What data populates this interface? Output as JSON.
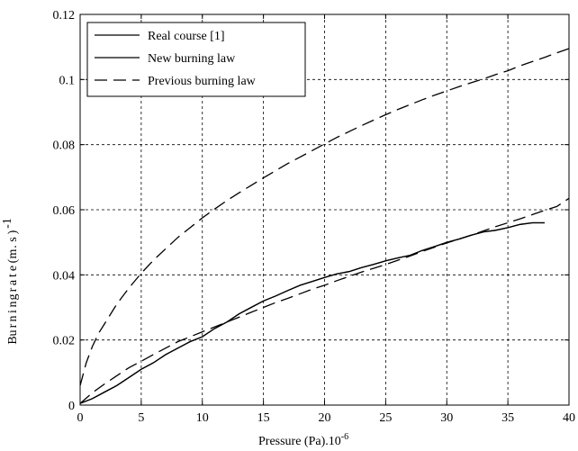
{
  "chart_data": {
    "type": "line",
    "xlabel": "Pressure (Pa).10",
    "xlabel_sup": "-6",
    "ylabel_chars": [
      "B",
      "u",
      "r",
      "n",
      "i",
      "n",
      "g",
      "r",
      "a",
      "t",
      "e",
      "(",
      "m",
      ".",
      "s",
      ")"
    ],
    "ylabel_sup": "-1",
    "xlim": [
      0,
      40
    ],
    "ylim": [
      0,
      0.12
    ],
    "x_ticks": [
      0,
      5,
      10,
      15,
      20,
      25,
      30,
      35,
      40
    ],
    "x_tick_labels": [
      "0",
      "5",
      "10",
      "15",
      "20",
      "25",
      "30",
      "35",
      "40"
    ],
    "y_ticks": [
      0,
      0.02,
      0.04,
      0.06,
      0.08,
      0.1,
      0.12
    ],
    "y_tick_labels": [
      "0",
      "0.02",
      "0.04",
      "0.06",
      "0.08",
      "0.1",
      "0.12"
    ],
    "grid": true,
    "legend_position": "top-left",
    "series": [
      {
        "name": "Real course [1]",
        "style": "solid",
        "x": [
          0,
          1,
          2,
          3,
          4,
          5,
          6,
          7,
          8,
          9,
          10,
          11,
          12,
          13,
          14,
          15,
          16,
          17,
          18,
          19,
          20,
          21,
          22,
          23,
          24,
          25,
          26,
          27,
          28,
          29,
          30,
          31,
          32,
          33,
          34,
          35,
          36,
          37,
          38
        ],
        "y": [
          0.0005,
          0.002,
          0.004,
          0.006,
          0.0085,
          0.011,
          0.013,
          0.0155,
          0.0175,
          0.0195,
          0.021,
          0.0235,
          0.0255,
          0.028,
          0.03,
          0.032,
          0.0335,
          0.0352,
          0.0368,
          0.038,
          0.0392,
          0.0403,
          0.041,
          0.0422,
          0.0432,
          0.0443,
          0.0452,
          0.046,
          0.0475,
          0.0487,
          0.05,
          0.051,
          0.0522,
          0.0532,
          0.0537,
          0.0545,
          0.0555,
          0.056,
          0.056
        ]
      },
      {
        "name": "New burning law",
        "style": "solid",
        "x": [
          0,
          1,
          2,
          3,
          4,
          5,
          6,
          7,
          8,
          9,
          10,
          11,
          12,
          13,
          14,
          15,
          16,
          17,
          18,
          19,
          20,
          21,
          22,
          23,
          24,
          25,
          26,
          27,
          28,
          29,
          30,
          31,
          32,
          33,
          34,
          35,
          36,
          37,
          38
        ],
        "y": [
          0.0005,
          0.002,
          0.004,
          0.006,
          0.0085,
          0.011,
          0.013,
          0.0155,
          0.0175,
          0.0195,
          0.021,
          0.0235,
          0.0255,
          0.028,
          0.03,
          0.032,
          0.0335,
          0.0352,
          0.0368,
          0.038,
          0.0392,
          0.0403,
          0.041,
          0.0422,
          0.0432,
          0.0443,
          0.0452,
          0.046,
          0.0475,
          0.0487,
          0.05,
          0.051,
          0.0522,
          0.0532,
          0.0537,
          0.0545,
          0.0555,
          0.056,
          0.056
        ]
      },
      {
        "name": "Previous burning law",
        "style": "dashed",
        "x": [
          0,
          0.5,
          1,
          1.5,
          2,
          3,
          4,
          5,
          6,
          7,
          8,
          9,
          10,
          11,
          12,
          13,
          14,
          15,
          16,
          17,
          18,
          19,
          20,
          21,
          22,
          23,
          24,
          25,
          26,
          27,
          28,
          29,
          30,
          31,
          32,
          33,
          34,
          35,
          36,
          37,
          38,
          39,
          40
        ],
        "y": [
          0.006,
          0.013,
          0.018,
          0.022,
          0.025,
          0.031,
          0.036,
          0.0405,
          0.0445,
          0.048,
          0.0515,
          0.0545,
          0.0575,
          0.0602,
          0.0628,
          0.0652,
          0.0675,
          0.0698,
          0.072,
          0.0742,
          0.0762,
          0.0782,
          0.0802,
          0.0822,
          0.084,
          0.0858,
          0.0875,
          0.0892,
          0.0908,
          0.0923,
          0.0938,
          0.0952,
          0.0965,
          0.0978,
          0.099,
          0.1002,
          0.1015,
          0.1027,
          0.1042,
          0.1055,
          0.1068,
          0.1082,
          0.1095
        ]
      },
      {
        "name": "",
        "style": "dashed",
        "x": [
          0,
          1,
          2,
          3,
          4,
          5,
          6,
          7,
          8,
          9,
          10,
          11,
          12,
          13,
          14,
          15,
          16,
          17,
          18,
          19,
          20,
          21,
          22,
          23,
          24,
          25,
          26,
          27,
          28,
          29,
          30,
          31,
          32,
          33,
          34,
          35,
          36,
          37,
          38,
          39,
          40
        ],
        "y": [
          0.0005,
          0.0038,
          0.0065,
          0.009,
          0.0115,
          0.0135,
          0.0155,
          0.0175,
          0.0195,
          0.021,
          0.0225,
          0.024,
          0.0255,
          0.027,
          0.0285,
          0.03,
          0.0315,
          0.0328,
          0.0342,
          0.0356,
          0.0368,
          0.0382,
          0.0395,
          0.0408,
          0.042,
          0.0432,
          0.0445,
          0.0458,
          0.0472,
          0.0485,
          0.0498,
          0.051,
          0.0522,
          0.0535,
          0.0548,
          0.056,
          0.0572,
          0.0585,
          0.0598,
          0.061,
          0.0635
        ]
      }
    ]
  }
}
